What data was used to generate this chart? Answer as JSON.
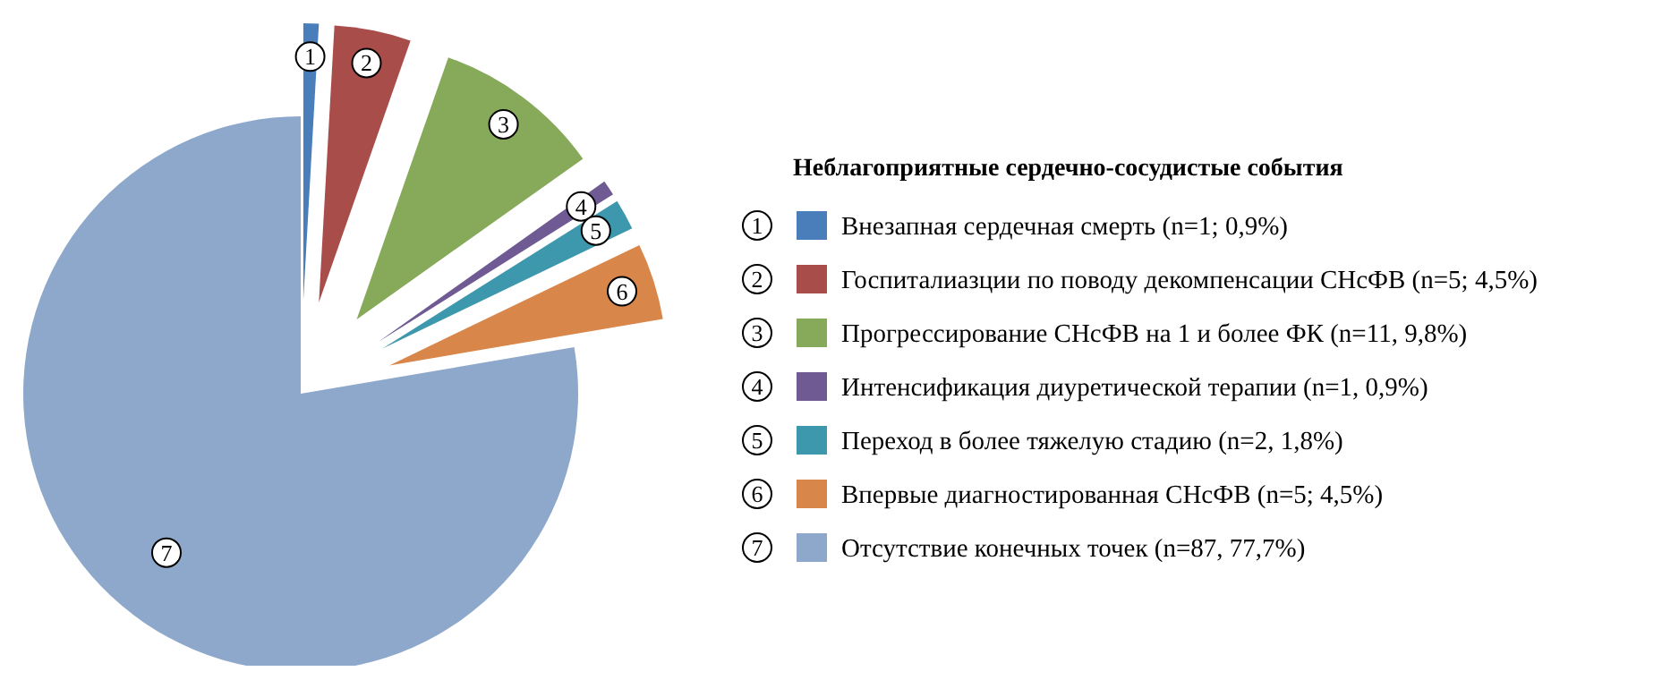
{
  "chart_data": {
    "type": "pie",
    "legend_title": "Неблагоприятные сердечно-сосудистые события",
    "legend": "right",
    "categories": [
      "Внезапная сердечная смерть (n=1; 0,9%)",
      "Госпиталиазции по поводу декомпенсации СНсФВ (n=5; 4,5%)",
      "Прогрессирование СНсФВ на 1 и более ФК (n=11, 9,8%)",
      "Интенсификация диуретической терапии (n=1, 0,9%)",
      "Переход в более тяжелую стадию (n=2, 1,8%)",
      "Впервые диагностированная СНсФВ (n=5; 4,5%)",
      "Отсутствие конечных точек (n=87, 77,7%)"
    ],
    "values": [
      1,
      5,
      11,
      1,
      2,
      5,
      87
    ],
    "annotations": [
      "1",
      "2",
      "3",
      "4",
      "5",
      "6",
      "7"
    ],
    "colors": [
      "#4a7ebb",
      "#a94d4b",
      "#86a95a",
      "#6f5a93",
      "#3e98ad",
      "#d9864a",
      "#8ea8cc"
    ]
  }
}
